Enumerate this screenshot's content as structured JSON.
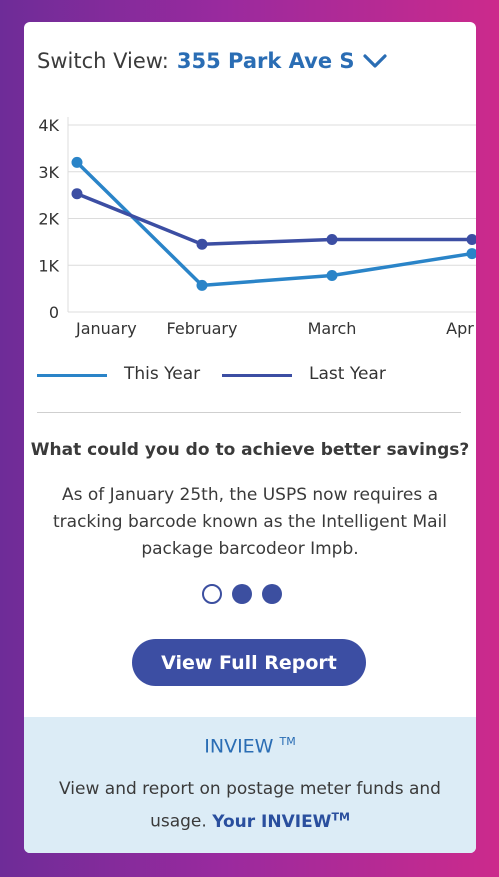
{
  "header": {
    "switch_label": "Switch View:",
    "location": "355 Park Ave S",
    "dropdown_icon": "chevron-down-icon"
  },
  "chart_data": {
    "type": "line",
    "categories": [
      "January",
      "February",
      "March",
      "Apr"
    ],
    "y_ticks": [
      "0",
      "1K",
      "2K",
      "3K",
      "4K"
    ],
    "ylim": [
      0,
      4000
    ],
    "grid": true,
    "legend_position": "bottom",
    "series": [
      {
        "name": "This Year",
        "color": "#2a84c8",
        "values": [
          3200,
          570,
          780,
          1250
        ]
      },
      {
        "name": "Last Year",
        "color": "#3c4ea3",
        "values": [
          2530,
          1450,
          1550,
          1550
        ]
      }
    ]
  },
  "tip": {
    "title": "What could you do to achieve better savings?",
    "body": "As of January 25th, the USPS now requires a tracking barcode known as the Intelligent Mail package barcodeor Impb."
  },
  "pagination": {
    "total": 3,
    "active": 0
  },
  "cta": {
    "label": "View Full Report"
  },
  "inview": {
    "title": "INVIEW",
    "tm": "TM",
    "desc": "View and report on postage meter funds and usage.",
    "link": "Your INVIEW",
    "link_tm": "TM"
  },
  "colors": {
    "accent": "#2a6db4",
    "primary": "#3c4ea3",
    "panel": "#dcecf6"
  }
}
